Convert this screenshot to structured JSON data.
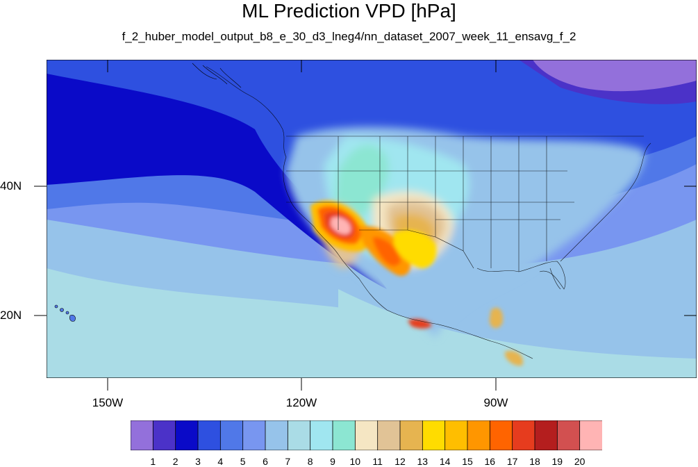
{
  "title": "ML Prediction VPD [hPa]",
  "subtitle": "f_2_huber_model_output_b8_e_30_d3_lneg4/nn_dataset_2007_week_11_ensavg_f_2",
  "y_axis": {
    "labels": [
      "40N",
      "20N"
    ]
  },
  "x_axis": {
    "labels": [
      "150W",
      "120W",
      "90W"
    ]
  },
  "colorbar": {
    "labels": [
      "1",
      "2",
      "3",
      "4",
      "5",
      "6",
      "7",
      "8",
      "9",
      "10",
      "11",
      "12",
      "13",
      "14",
      "15",
      "16",
      "17",
      "18",
      "19",
      "20"
    ],
    "colors": [
      "#9370db",
      "#4b32c8",
      "#0a0ac8",
      "#2e50e0",
      "#5078e8",
      "#7896f0",
      "#96c3ea",
      "#aadce6",
      "#a0e6f0",
      "#8ce6d2",
      "#f5e6c3",
      "#e1c396",
      "#e6b450",
      "#ffdc00",
      "#ffbe00",
      "#ff9600",
      "#ff6400",
      "#e63c1e",
      "#b41e1e",
      "#d25050",
      "#ffb4b4"
    ]
  }
}
